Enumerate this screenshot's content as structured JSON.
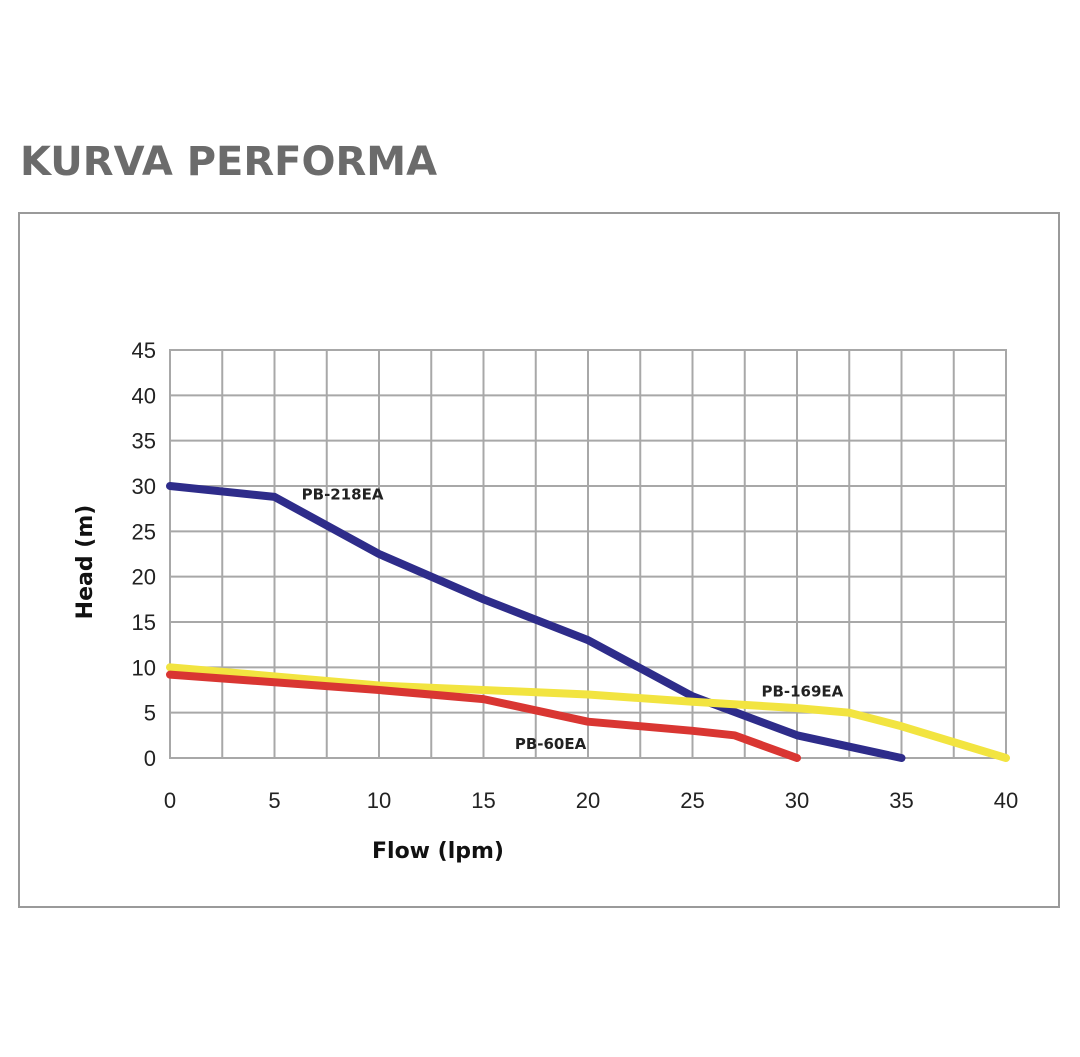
{
  "page": {
    "title": "KURVA PERFORMA"
  },
  "chart_data": {
    "type": "line",
    "title": "",
    "xlabel": "Flow (lpm)",
    "ylabel": "Head (m)",
    "xlim": [
      0,
      40
    ],
    "ylim": [
      0,
      45
    ],
    "x_ticks": [
      0,
      5,
      10,
      15,
      20,
      25,
      30,
      35,
      40
    ],
    "y_ticks": [
      0,
      5,
      10,
      15,
      20,
      25,
      30,
      35,
      40,
      45
    ],
    "x_grid_step": 2.5,
    "y_grid_step": 5,
    "grid": true,
    "legend": "inline labels",
    "series": [
      {
        "name": "PB-218EA",
        "color": "#2e2c8a",
        "x": [
          0,
          5,
          10,
          15,
          20,
          25,
          30,
          35
        ],
        "y": [
          30,
          28.8,
          22.5,
          17.5,
          13,
          6.8,
          2.5,
          0
        ]
      },
      {
        "name": "PB-169EA",
        "color": "#f2e440",
        "x": [
          0,
          10,
          20,
          25,
          30,
          32.5,
          35,
          40
        ],
        "y": [
          10,
          8,
          7,
          6.2,
          5.5,
          5,
          3.5,
          0
        ]
      },
      {
        "name": "PB-60EA",
        "color": "#d93632",
        "x": [
          0,
          10,
          15,
          20,
          25,
          27,
          30
        ],
        "y": [
          9.2,
          7.5,
          6.5,
          4,
          3,
          2.5,
          0
        ]
      }
    ]
  }
}
